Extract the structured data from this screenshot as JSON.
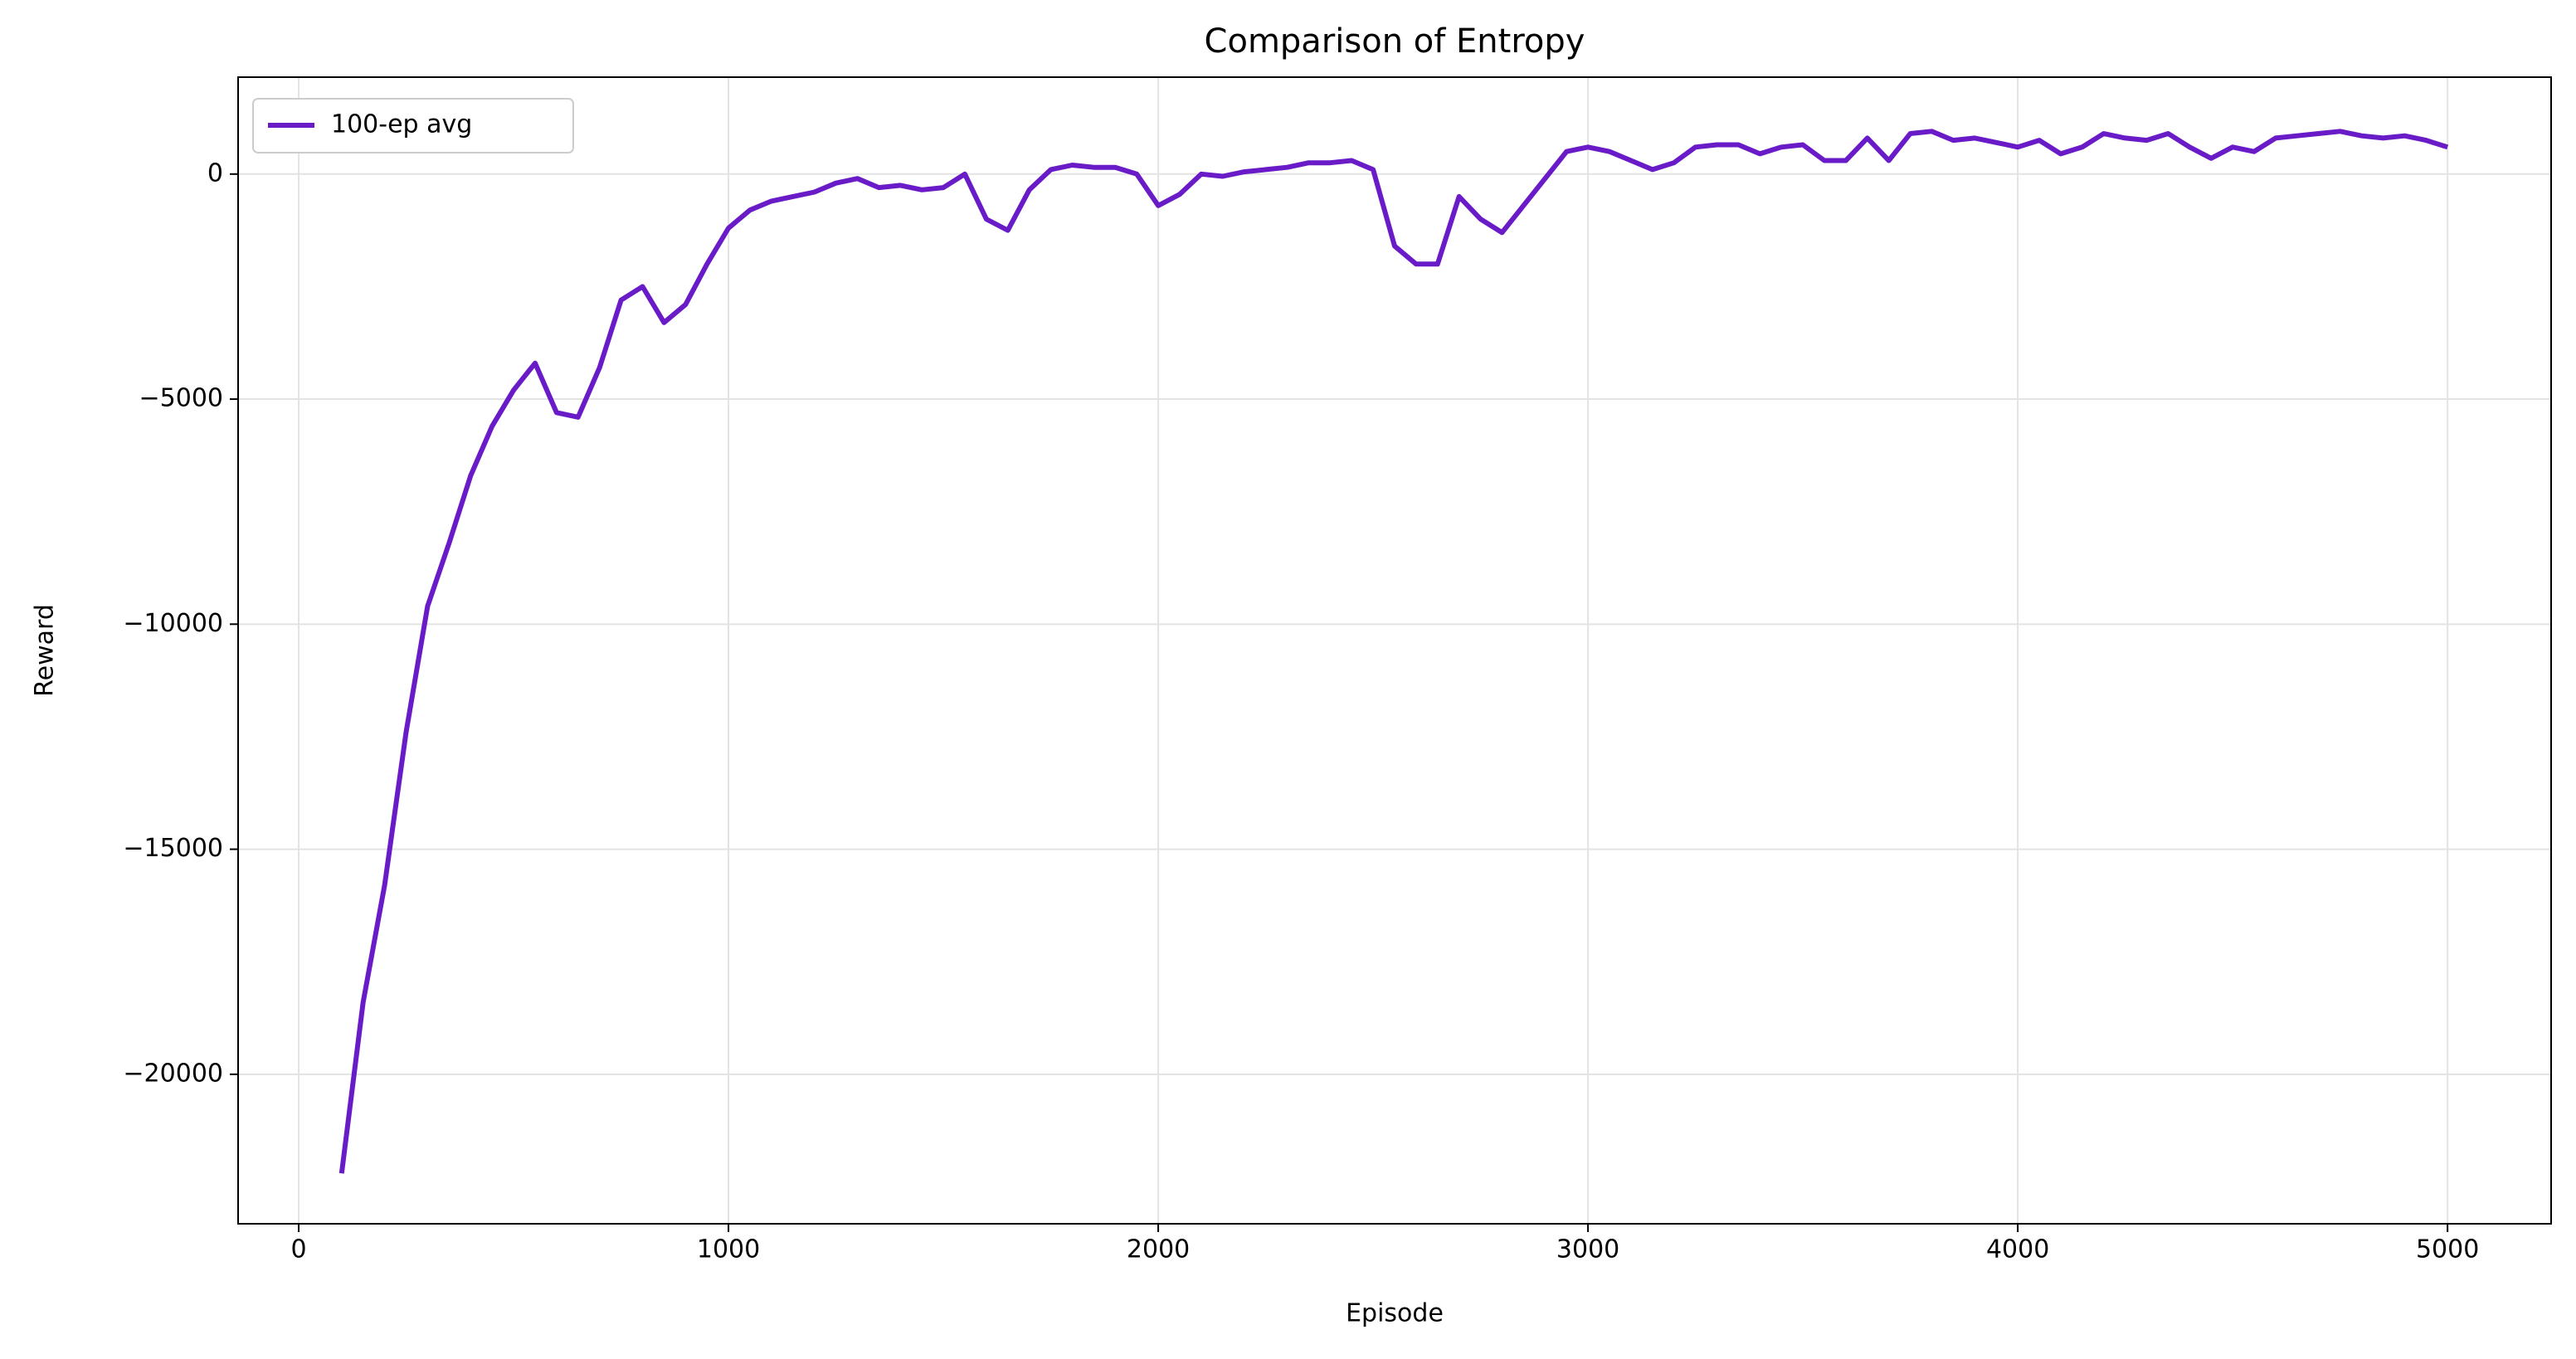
{
  "chart_data": {
    "type": "line",
    "title": "Comparison of Entropy",
    "x_label": "Episode",
    "y_label": "Reward",
    "x": [
      100,
      150,
      200,
      250,
      300,
      350,
      400,
      450,
      500,
      550,
      600,
      650,
      700,
      750,
      800,
      850,
      900,
      950,
      1000,
      1050,
      1100,
      1150,
      1200,
      1250,
      1300,
      1350,
      1400,
      1450,
      1500,
      1550,
      1600,
      1650,
      1700,
      1750,
      1800,
      1850,
      1900,
      1950,
      2000,
      2050,
      2100,
      2150,
      2200,
      2250,
      2300,
      2350,
      2400,
      2450,
      2500,
      2550,
      2600,
      2650,
      2700,
      2750,
      2800,
      2850,
      2900,
      2950,
      3000,
      3050,
      3100,
      3150,
      3200,
      3250,
      3300,
      3350,
      3400,
      3450,
      3500,
      3550,
      3600,
      3650,
      3700,
      3750,
      3800,
      3850,
      3900,
      3950,
      4000,
      4050,
      4100,
      4150,
      4200,
      4250,
      4300,
      4350,
      4400,
      4450,
      4500,
      4550,
      4600,
      4650,
      4700,
      4750,
      4800,
      4850,
      4900,
      4950,
      5000
    ],
    "series": [
      {
        "name": "100-ep avg",
        "color": "#6a1bc8",
        "values": [
          -22200,
          -18400,
          -15800,
          -12400,
          -9600,
          -8200,
          -6700,
          -5600,
          -4800,
          -4200,
          -5300,
          -5400,
          -4300,
          -2800,
          -2500,
          -3300,
          -2900,
          -2000,
          -1200,
          -800,
          -600,
          -500,
          -400,
          -200,
          -100,
          -300,
          -250,
          -350,
          -300,
          0,
          -1000,
          -1250,
          -350,
          100,
          200,
          150,
          150,
          0,
          -700,
          -450,
          0,
          -50,
          50,
          100,
          150,
          250,
          250,
          300,
          100,
          -1600,
          -2000,
          -2000,
          -500,
          -1000,
          -1300,
          -700,
          -100,
          500,
          600,
          500,
          300,
          100,
          250,
          600,
          650,
          650,
          450,
          600,
          650,
          300,
          300,
          800,
          300,
          900,
          950,
          750,
          800,
          700,
          600,
          750,
          450,
          600,
          900,
          800,
          750,
          900,
          600,
          350,
          600,
          500,
          800,
          850,
          900,
          950,
          850,
          800,
          850,
          750,
          600
        ]
      }
    ],
    "xlim": [
      -141,
      5241
    ],
    "ylim": [
      -23321,
      2153
    ],
    "xticks": [
      0,
      1000,
      2000,
      3000,
      4000,
      5000
    ],
    "yticks": [
      {
        "value": -20000,
        "label": "−20000"
      },
      {
        "value": -15000,
        "label": "−15000"
      },
      {
        "value": -10000,
        "label": "−10000"
      },
      {
        "value": -5000,
        "label": "−5000"
      },
      0
    ],
    "grid": true,
    "legend": "upper left"
  }
}
